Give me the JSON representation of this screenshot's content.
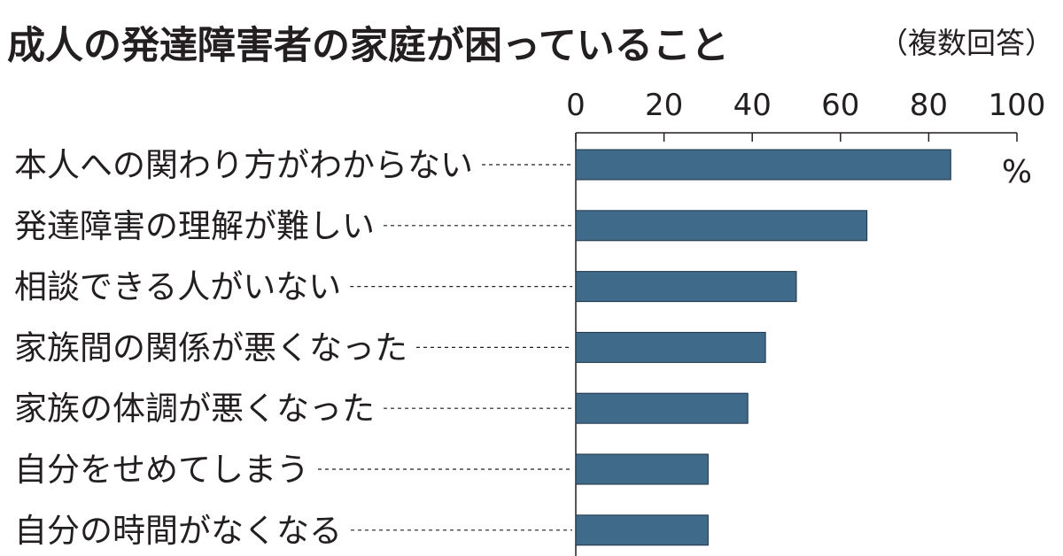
{
  "title": "成人の発達障害者の家庭が困っていること",
  "subtitle": "（複数回答）",
  "chart_data": {
    "type": "bar",
    "orientation": "horizontal",
    "title": "成人の発達障害者の家庭が困っていること",
    "subtitle": "（複数回答）",
    "unit": "%",
    "xlim": [
      0,
      100
    ],
    "ticks": [
      0,
      20,
      40,
      60,
      80,
      100
    ],
    "tick_labels": [
      "0",
      "20",
      "40",
      "60",
      "80",
      "100"
    ],
    "categories": [
      "本人への関わり方がわからない",
      "発達障害の理解が難しい",
      "相談できる人がいない",
      "家族間の関係が悪くなった",
      "家族の体調が悪くなった",
      "自分をせめてしまう",
      "自分の時間がなくなる"
    ],
    "values": [
      85,
      66,
      50,
      43,
      39,
      30,
      30
    ],
    "bar_color": "#3f6a8a",
    "grid": false,
    "legend": "none"
  }
}
